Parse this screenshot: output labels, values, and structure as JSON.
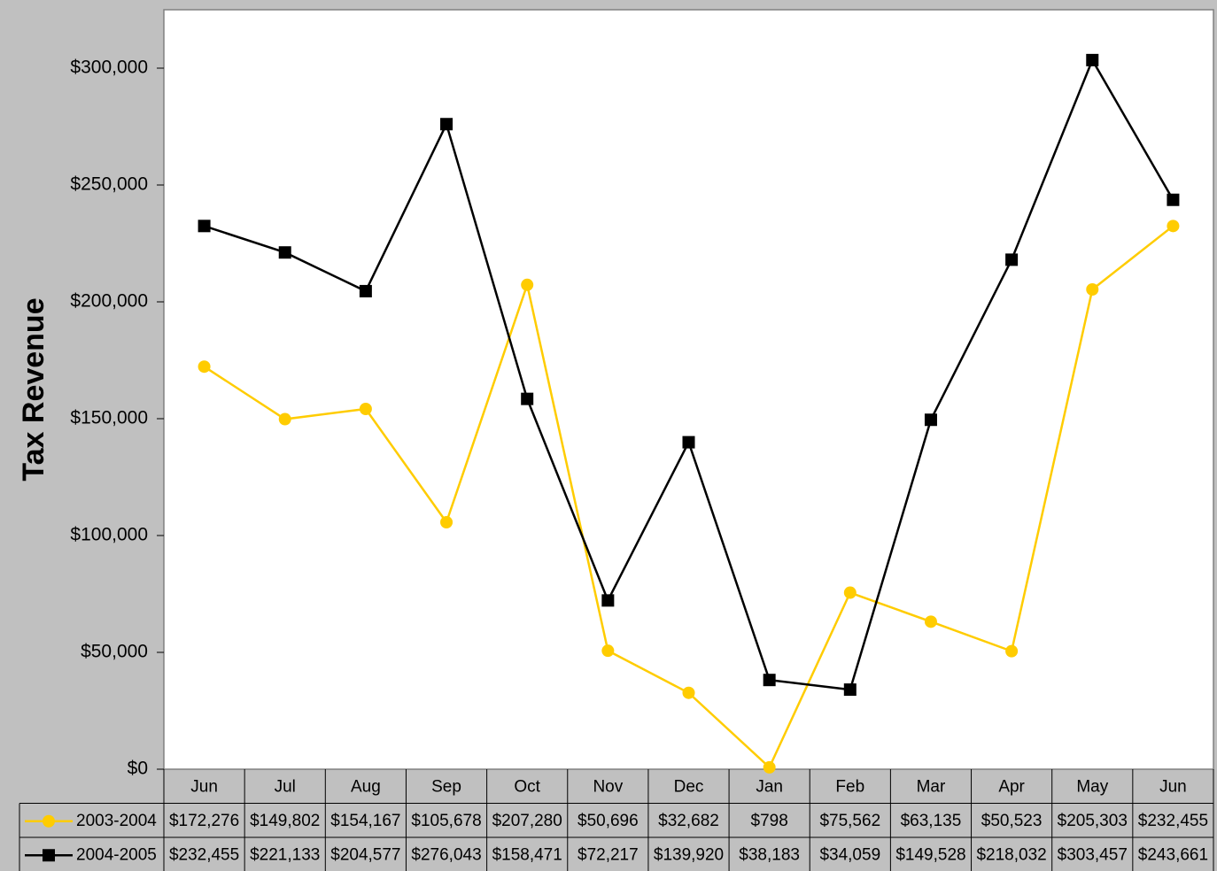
{
  "chart_data": {
    "type": "line",
    "title": "",
    "xlabel": "",
    "ylabel": "Tax Revenue",
    "ylim": [
      0,
      325000
    ],
    "yticks": [
      0,
      50000,
      100000,
      150000,
      200000,
      250000,
      300000
    ],
    "ytick_labels": [
      "$0",
      "$50,000",
      "$100,000",
      "$150,000",
      "$200,000",
      "$250,000",
      "$300,000"
    ],
    "grid": false,
    "legend_placement": "data-table",
    "categories": [
      "Jun",
      "Jul",
      "Aug",
      "Sep",
      "Oct",
      "Nov",
      "Dec",
      "Jan",
      "Feb",
      "Mar",
      "Apr",
      "May",
      "Jun"
    ],
    "series": [
      {
        "name": "2003-2004",
        "color": "#ffcc00",
        "marker": "circle",
        "values": [
          172276,
          149802,
          154167,
          105678,
          207280,
          50696,
          32682,
          798,
          75562,
          63135,
          50523,
          205303,
          232455
        ],
        "labels": [
          "$172,276",
          "$149,802",
          "$154,167",
          "$105,678",
          "$207,280",
          "$50,696",
          "$32,682",
          "$798",
          "$75,562",
          "$63,135",
          "$50,523",
          "$205,303",
          "$232,455"
        ]
      },
      {
        "name": "2004-2005",
        "color": "#000000",
        "marker": "square",
        "values": [
          232455,
          221133,
          204577,
          276043,
          158471,
          72217,
          139920,
          38183,
          34059,
          149528,
          218032,
          303457,
          243661
        ],
        "labels": [
          "$232,455",
          "$221,133",
          "$204,577",
          "$276,043",
          "$158,471",
          "$72,217",
          "$139,920",
          "$38,183",
          "$34,059",
          "$149,528",
          "$218,032",
          "$303,457",
          "$243,661"
        ]
      }
    ]
  }
}
